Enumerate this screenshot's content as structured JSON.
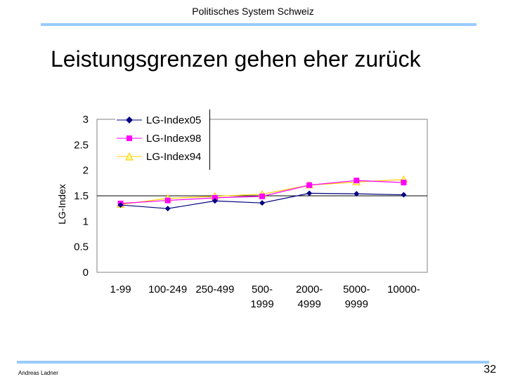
{
  "header": {
    "title": "Politisches System Schweiz"
  },
  "slide": {
    "title": "Leistungsgrenzen gehen eher zurück"
  },
  "footer": {
    "author": "Andreas Ladner",
    "page": "32"
  },
  "colors": {
    "accent_rule": "#99ccff",
    "series_05": "#000080",
    "series_98": "#ff00ff",
    "series_94": "#ffcc00",
    "plot_bg": "#ffffff"
  },
  "chart_data": {
    "type": "line",
    "title": "",
    "xlabel": "",
    "ylabel": "LG-Index",
    "ylim": [
      0,
      3
    ],
    "yticks": [
      "0",
      "0.5",
      "1",
      "1.5",
      "2",
      "2.5",
      "3"
    ],
    "reference_line": 1.5,
    "legend_position": "top-left",
    "categories": [
      [
        "1-99"
      ],
      [
        "100-249"
      ],
      [
        "250-499"
      ],
      [
        "500-",
        "1999"
      ],
      [
        "2000-",
        "4999"
      ],
      [
        "5000-",
        "9999"
      ],
      [
        "10000-"
      ]
    ],
    "series": [
      {
        "name": "LG-Index05",
        "marker": "diamond",
        "color": "#000080",
        "values": [
          1.32,
          1.25,
          1.4,
          1.36,
          1.55,
          1.54,
          1.52
        ]
      },
      {
        "name": "LG-Index98",
        "marker": "square",
        "color": "#ff00ff",
        "values": [
          1.35,
          1.41,
          1.46,
          1.49,
          1.71,
          1.8,
          1.76
        ]
      },
      {
        "name": "LG-Index94",
        "marker": "triangle",
        "color": "#ffcc00",
        "values": [
          1.33,
          1.45,
          1.49,
          1.53,
          1.71,
          1.77,
          1.82
        ]
      }
    ]
  }
}
